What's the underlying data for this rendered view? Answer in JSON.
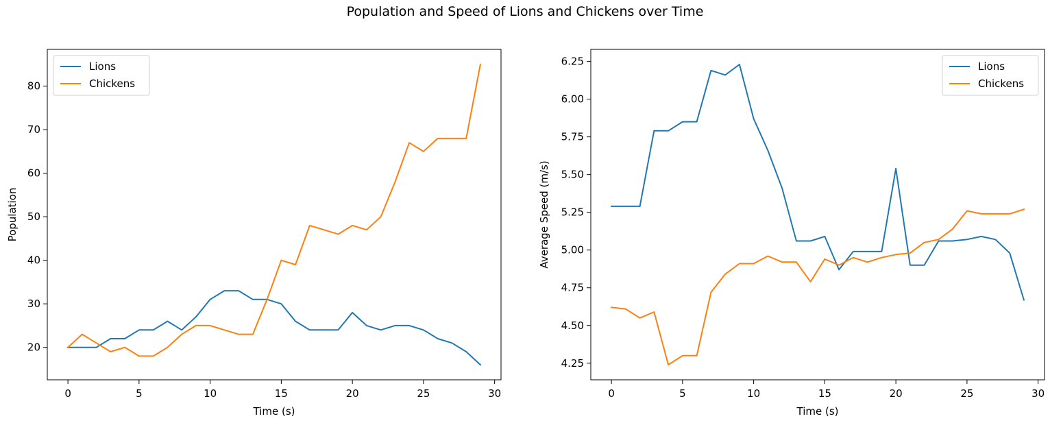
{
  "figure": {
    "title": "Population and Speed of Lions and Chickens over Time"
  },
  "colors": {
    "Lions": "#1f77b4",
    "Chickens": "#ff7f0e"
  },
  "chart_data": [
    {
      "type": "line",
      "title": "",
      "xlabel": "Time (s)",
      "ylabel": "Population",
      "xlim": [
        -1.45,
        30.45
      ],
      "ylim": [
        12.55,
        88.45
      ],
      "xticks": [
        0,
        5,
        10,
        15,
        20,
        25,
        30
      ],
      "yticks": [
        20,
        30,
        40,
        50,
        60,
        70,
        80
      ],
      "ytick_labels": [
        "20",
        "30",
        "40",
        "50",
        "60",
        "70",
        "80"
      ],
      "grid": false,
      "legend": "upper left",
      "x": [
        0,
        1,
        2,
        3,
        4,
        5,
        6,
        7,
        8,
        9,
        10,
        11,
        12,
        13,
        14,
        15,
        16,
        17,
        18,
        19,
        20,
        21,
        22,
        23,
        24,
        25,
        26,
        27,
        28,
        29
      ],
      "series": [
        {
          "name": "Lions",
          "values": [
            20,
            20,
            20,
            22,
            22,
            24,
            24,
            26,
            24,
            27,
            31,
            33,
            33,
            31,
            31,
            30,
            26,
            24,
            24,
            24,
            28,
            25,
            24,
            25,
            25,
            24,
            22,
            21,
            19,
            16
          ]
        },
        {
          "name": "Chickens",
          "values": [
            20,
            23,
            21,
            19,
            20,
            18,
            18,
            20,
            23,
            25,
            25,
            24,
            23,
            23,
            31,
            40,
            39,
            48,
            47,
            46,
            48,
            47,
            50,
            58,
            67,
            65,
            68,
            68,
            68,
            85
          ]
        }
      ]
    },
    {
      "type": "line",
      "title": "",
      "xlabel": "Time (s)",
      "ylabel": "Average Speed (m/s)",
      "xlim": [
        -1.45,
        30.45
      ],
      "ylim": [
        4.14,
        6.33
      ],
      "xticks": [
        0,
        5,
        10,
        15,
        20,
        25,
        30
      ],
      "yticks": [
        4.25,
        4.5,
        4.75,
        5.0,
        5.25,
        5.5,
        5.75,
        6.0,
        6.25
      ],
      "ytick_labels": [
        "4.25",
        "4.50",
        "4.75",
        "5.00",
        "5.25",
        "5.50",
        "5.75",
        "6.00",
        "6.25"
      ],
      "grid": false,
      "legend": "upper right",
      "x": [
        0,
        1,
        2,
        3,
        4,
        5,
        6,
        7,
        8,
        9,
        10,
        11,
        12,
        13,
        14,
        15,
        16,
        17,
        18,
        19,
        20,
        21,
        22,
        23,
        24,
        25,
        26,
        27,
        28,
        29
      ],
      "series": [
        {
          "name": "Lions",
          "values": [
            5.29,
            5.29,
            5.29,
            5.79,
            5.79,
            5.85,
            5.85,
            6.19,
            6.16,
            6.23,
            5.87,
            5.66,
            5.41,
            5.06,
            5.06,
            5.09,
            4.87,
            4.99,
            4.99,
            4.99,
            5.54,
            4.9,
            4.9,
            5.06,
            5.06,
            5.07,
            5.09,
            5.07,
            4.98,
            4.67
          ]
        },
        {
          "name": "Chickens",
          "values": [
            4.62,
            4.61,
            4.55,
            4.59,
            4.24,
            4.3,
            4.3,
            4.72,
            4.84,
            4.91,
            4.91,
            4.96,
            4.92,
            4.92,
            4.79,
            4.94,
            4.9,
            4.95,
            4.92,
            4.95,
            4.97,
            4.98,
            5.05,
            5.07,
            5.14,
            5.26,
            5.24,
            5.24,
            5.24,
            5.27
          ]
        }
      ]
    }
  ]
}
